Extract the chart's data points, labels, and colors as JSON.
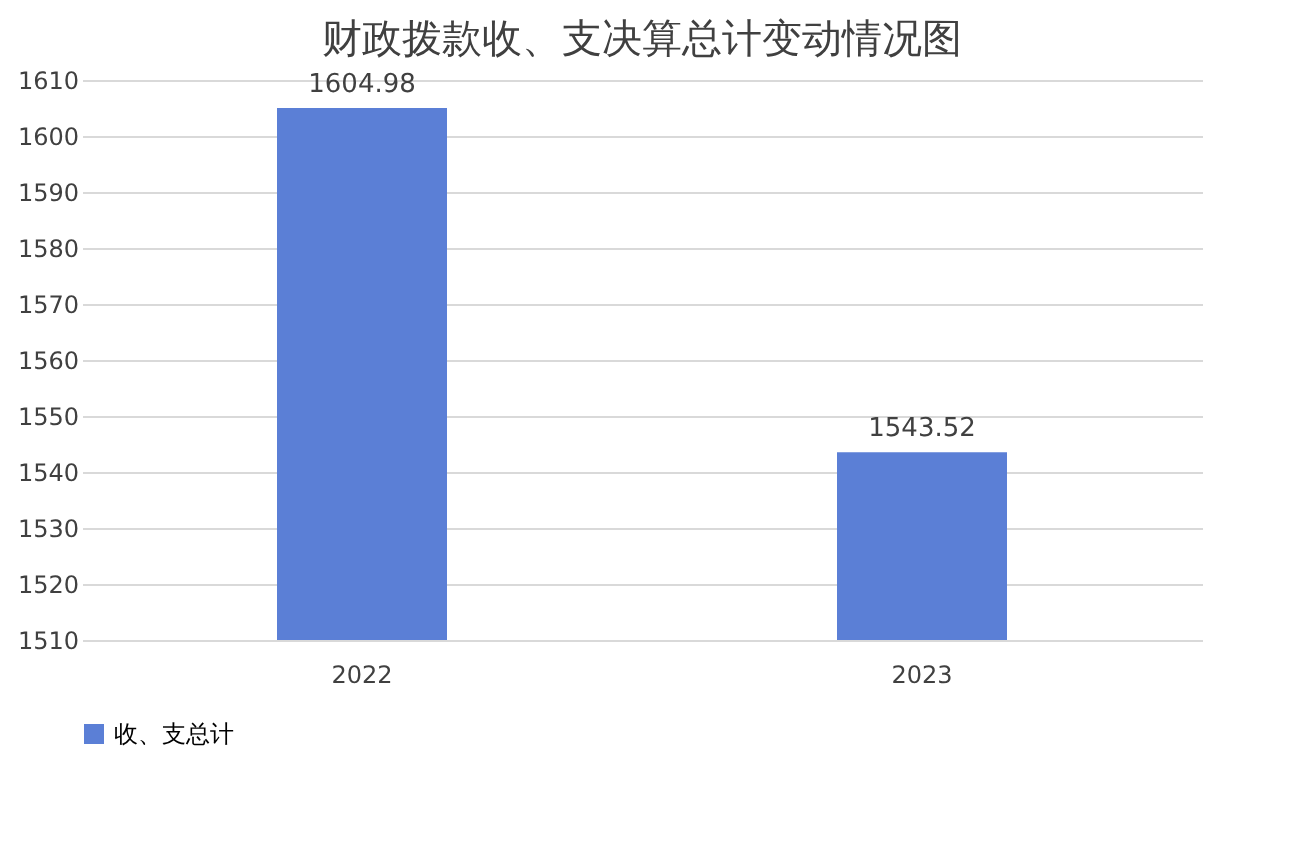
{
  "chart_data": {
    "type": "bar",
    "title": "财政拨款收、支决算总计变动情况图",
    "categories": [
      "2022",
      "2023"
    ],
    "series": [
      {
        "name": "收、支总计",
        "color": "#5b7fd6",
        "values": [
          1604.98,
          1543.52
        ]
      }
    ],
    "ylim": [
      1510,
      1610
    ],
    "yticks": [
      1510,
      1520,
      1530,
      1540,
      1550,
      1560,
      1570,
      1580,
      1590,
      1600,
      1610
    ],
    "grid": "y",
    "legend": "bottom",
    "data_labels": true
  }
}
